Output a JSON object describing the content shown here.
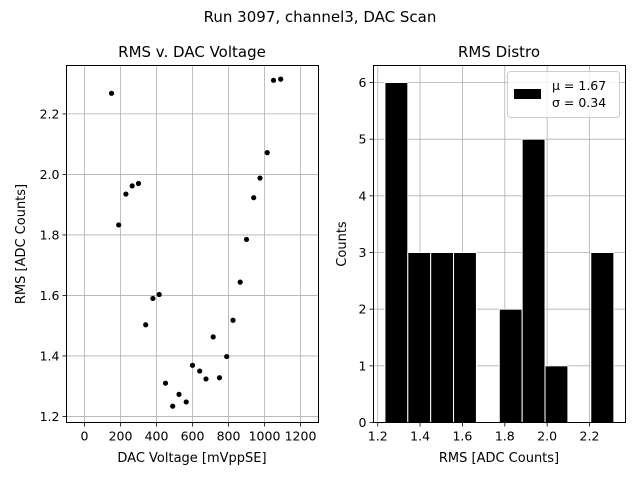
{
  "figure": {
    "suptitle": "Run 3097, channel3, DAC Scan"
  },
  "chart_data": [
    {
      "type": "scatter",
      "title": "RMS v. DAC Voltage",
      "xlabel": "DAC Voltage [mVppSE]",
      "ylabel": "RMS [ADC Counts]",
      "xlim": [
        -100,
        1300
      ],
      "ylim": [
        1.18,
        2.36
      ],
      "xticks": [
        0,
        200,
        400,
        600,
        800,
        1000,
        1200
      ],
      "yticks": [
        1.2,
        1.4,
        1.6,
        1.8,
        2.0,
        2.2
      ],
      "xtick_labels": [
        "0",
        "200",
        "400",
        "600",
        "800",
        "1000",
        "1200"
      ],
      "ytick_labels": [
        "1.2",
        "1.4",
        "1.6",
        "1.8",
        "2.0",
        "2.2"
      ],
      "grid": true,
      "color": "#000000",
      "points": [
        {
          "x": 150,
          "y": 2.268
        },
        {
          "x": 190,
          "y": 1.833
        },
        {
          "x": 230,
          "y": 1.935
        },
        {
          "x": 265,
          "y": 1.962
        },
        {
          "x": 300,
          "y": 1.97
        },
        {
          "x": 340,
          "y": 1.503
        },
        {
          "x": 380,
          "y": 1.59
        },
        {
          "x": 415,
          "y": 1.603
        },
        {
          "x": 450,
          "y": 1.31
        },
        {
          "x": 490,
          "y": 1.234
        },
        {
          "x": 525,
          "y": 1.273
        },
        {
          "x": 565,
          "y": 1.248
        },
        {
          "x": 600,
          "y": 1.369
        },
        {
          "x": 640,
          "y": 1.35
        },
        {
          "x": 675,
          "y": 1.324
        },
        {
          "x": 715,
          "y": 1.463
        },
        {
          "x": 750,
          "y": 1.328
        },
        {
          "x": 790,
          "y": 1.398
        },
        {
          "x": 825,
          "y": 1.518
        },
        {
          "x": 865,
          "y": 1.644
        },
        {
          "x": 900,
          "y": 1.785
        },
        {
          "x": 940,
          "y": 1.923
        },
        {
          "x": 975,
          "y": 1.988
        },
        {
          "x": 1015,
          "y": 2.072
        },
        {
          "x": 1050,
          "y": 2.311
        },
        {
          "x": 1090,
          "y": 2.315
        }
      ]
    },
    {
      "type": "bar",
      "subtype": "histogram",
      "title": "RMS Distro",
      "xlabel": "RMS [ADC Counts]",
      "ylabel": "Counts",
      "xlim": [
        1.18,
        2.37
      ],
      "ylim": [
        0,
        6.3
      ],
      "xticks": [
        1.2,
        1.4,
        1.6,
        1.8,
        2.0,
        2.2
      ],
      "yticks": [
        0,
        1,
        2,
        3,
        4,
        5,
        6
      ],
      "xtick_labels": [
        "1.2",
        "1.4",
        "1.6",
        "1.8",
        "2.0",
        "2.2"
      ],
      "ytick_labels": [
        "0",
        "1",
        "2",
        "3",
        "4",
        "5",
        "6"
      ],
      "grid": true,
      "color": "#000000",
      "edgecolor": "#ffffff",
      "bins": [
        {
          "start": 1.234,
          "end": 1.342,
          "count": 6
        },
        {
          "start": 1.342,
          "end": 1.45,
          "count": 3
        },
        {
          "start": 1.45,
          "end": 1.558,
          "count": 3
        },
        {
          "start": 1.558,
          "end": 1.666,
          "count": 3
        },
        {
          "start": 1.666,
          "end": 1.774,
          "count": 0
        },
        {
          "start": 1.774,
          "end": 1.882,
          "count": 2
        },
        {
          "start": 1.882,
          "end": 1.99,
          "count": 5
        },
        {
          "start": 1.99,
          "end": 2.098,
          "count": 1
        },
        {
          "start": 2.098,
          "end": 2.206,
          "count": 0
        },
        {
          "start": 2.206,
          "end": 2.315,
          "count": 3
        }
      ],
      "legend": {
        "position": "top-right",
        "lines": [
          "μ = 1.67",
          "σ = 0.34"
        ]
      }
    }
  ]
}
